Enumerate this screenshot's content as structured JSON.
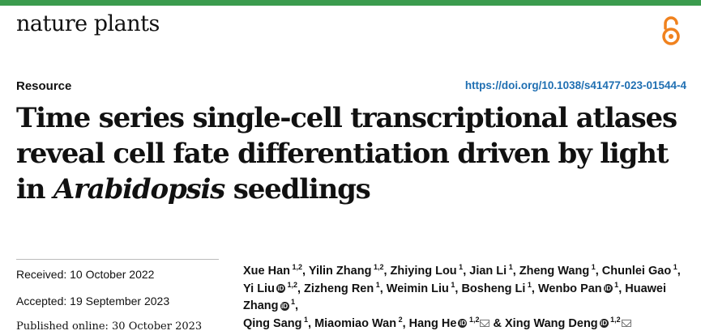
{
  "journal": "nature plants",
  "section": "Resource",
  "doi": "https://doi.org/10.1038/s41477-023-01544-4",
  "title": {
    "line1": "Time series single-cell transcriptional atlases",
    "line2": "reveal cell fate differentiation driven by light",
    "line3_pre": "in ",
    "line3_italic": "Arabidopsis",
    "line3_post": " seedlings"
  },
  "dates": {
    "received": "Received: 10 October 2022",
    "accepted": "Accepted: 19 September 2023",
    "published": "Published online: 30 October 2023"
  },
  "authors": [
    {
      "name": "Xue Han",
      "aff": "1,2"
    },
    {
      "name": "Yilin Zhang",
      "aff": "1,2"
    },
    {
      "name": "Zhiying Lou",
      "aff": "1"
    },
    {
      "name": "Jian Li",
      "aff": "1"
    },
    {
      "name": "Zheng Wang",
      "aff": "1"
    },
    {
      "name": "Chunlei Gao",
      "aff": "1"
    },
    {
      "name": "Yi Liu",
      "aff": "1,2",
      "orcid": true
    },
    {
      "name": "Zizheng Ren",
      "aff": "1"
    },
    {
      "name": "Weimin Liu",
      "aff": "1"
    },
    {
      "name": "Bosheng Li",
      "aff": "1"
    },
    {
      "name": "Wenbo Pan",
      "aff": "1",
      "orcid": true
    },
    {
      "name": "Huawei Zhang",
      "aff": "1",
      "orcid": true
    },
    {
      "name": "Qing Sang",
      "aff": "1"
    },
    {
      "name": "Miaomiao Wan",
      "aff": "2"
    },
    {
      "name": "Hang He",
      "aff": "1,2",
      "orcid": true,
      "mail": true
    },
    {
      "name": "Xing Wang Deng",
      "aff": "1,2",
      "orcid": true,
      "mail": true,
      "prefix": "& "
    }
  ],
  "icons": {
    "open_access": "open-access-icon",
    "orcid": "orcid-icon",
    "mail": "mail-icon"
  },
  "colors": {
    "top_bar": "#3b9c4e",
    "doi_link": "#1f6fb2",
    "oa_icon": "#f0821e"
  }
}
